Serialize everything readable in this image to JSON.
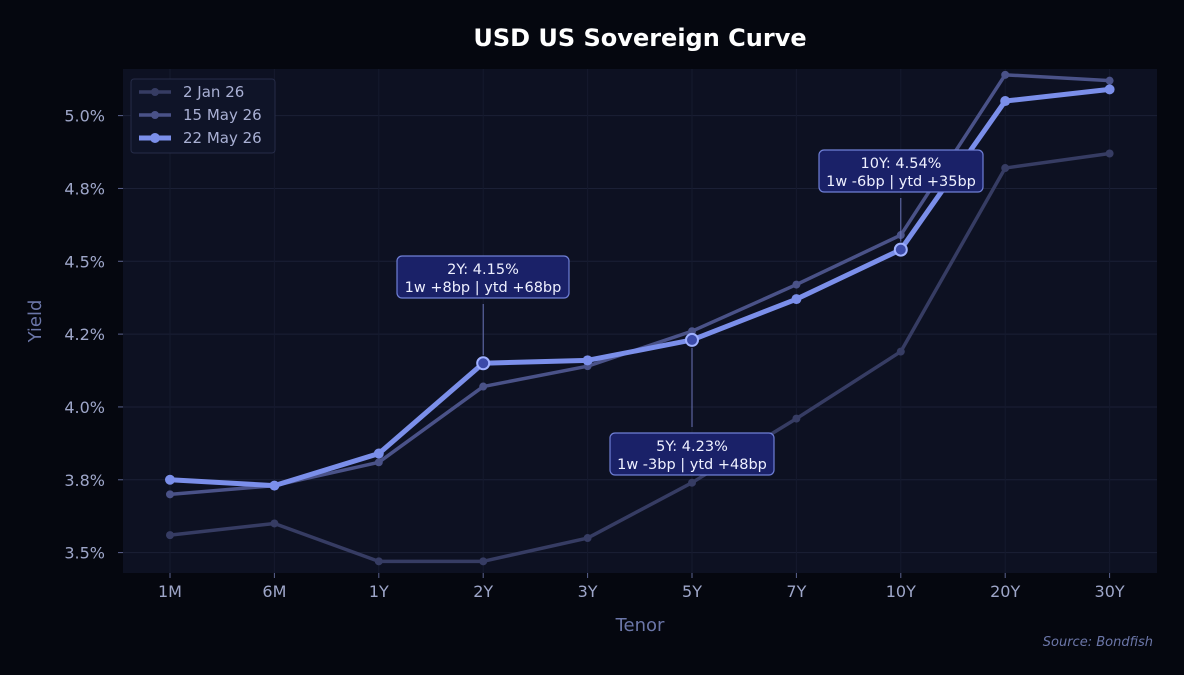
{
  "chart_data": {
    "type": "line",
    "title": "USD US Sovereign Curve",
    "xlabel": "Tenor",
    "ylabel": "Yield",
    "source": "Source: Bondfish",
    "categories": [
      "1M",
      "6M",
      "1Y",
      "2Y",
      "3Y",
      "5Y",
      "7Y",
      "10Y",
      "20Y",
      "30Y"
    ],
    "ylim": [
      3.43,
      5.16
    ],
    "yticks": [
      3.5,
      3.75,
      4.0,
      4.25,
      4.5,
      4.75,
      5.0
    ],
    "ytick_labels": [
      "3.5%",
      "3.8%",
      "4.0%",
      "4.2%",
      "4.5%",
      "4.8%",
      "5.0%"
    ],
    "grid": true,
    "legend_position": "top-left",
    "series": [
      {
        "name": "2 Jan 26",
        "color": "#363c63",
        "values": [
          3.56,
          3.6,
          3.47,
          3.47,
          3.55,
          3.74,
          3.96,
          4.19,
          4.82,
          4.87
        ]
      },
      {
        "name": "15 May 26",
        "color": "#4a5288",
        "values": [
          3.7,
          3.73,
          3.81,
          4.07,
          4.14,
          4.26,
          4.42,
          4.59,
          5.14,
          5.12
        ]
      },
      {
        "name": "22 May 26",
        "color": "#7b8fea",
        "values": [
          3.75,
          3.73,
          3.84,
          4.15,
          4.16,
          4.23,
          4.37,
          4.54,
          5.05,
          5.09
        ]
      }
    ],
    "annotations": [
      {
        "tenor": "2Y",
        "line1": "2Y: 4.15%",
        "line2": "1w +8bp | ytd +68bp"
      },
      {
        "tenor": "5Y",
        "line1": "5Y: 4.23%",
        "line2": "1w -3bp | ytd +48bp"
      },
      {
        "tenor": "10Y",
        "line1": "10Y: 4.54%",
        "line2": "1w -6bp | ytd +35bp"
      }
    ]
  }
}
